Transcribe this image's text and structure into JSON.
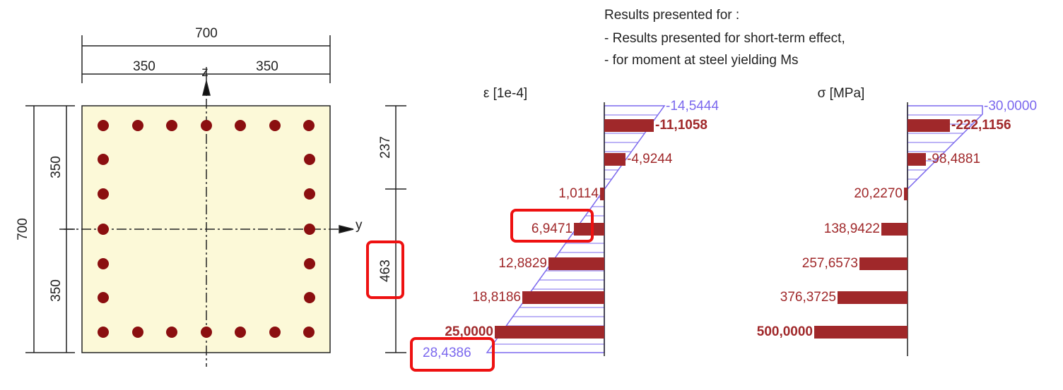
{
  "header": {
    "lines": [
      "Results presented for :",
      "- Results presented for short-term effect,",
      "- for moment at steel yielding Ms"
    ]
  },
  "section": {
    "dimensions": {
      "top_total": "700",
      "top_left": "350",
      "top_right": "350",
      "left_total": "700",
      "left_top": "350",
      "left_bottom": "350"
    },
    "axes": {
      "z": "z",
      "y": "y"
    }
  },
  "strain": {
    "title": "ε [1e-4]",
    "dimensions": [
      "237",
      "463"
    ],
    "edge_labels": [
      "-14,5444",
      "28,4386"
    ],
    "bar_labels": [
      "-11,1058",
      "-4,9244",
      "1,0114",
      "6,9471",
      "12,8829",
      "18,8186",
      "25,0000"
    ]
  },
  "stress": {
    "title": "σ [MPa]",
    "edge_labels": [
      "-30,0000"
    ],
    "bar_labels": [
      "-222,1156",
      "-98,4881",
      "20,2270",
      "138,9422",
      "257,6573",
      "376,3725",
      "500,0000"
    ]
  }
}
